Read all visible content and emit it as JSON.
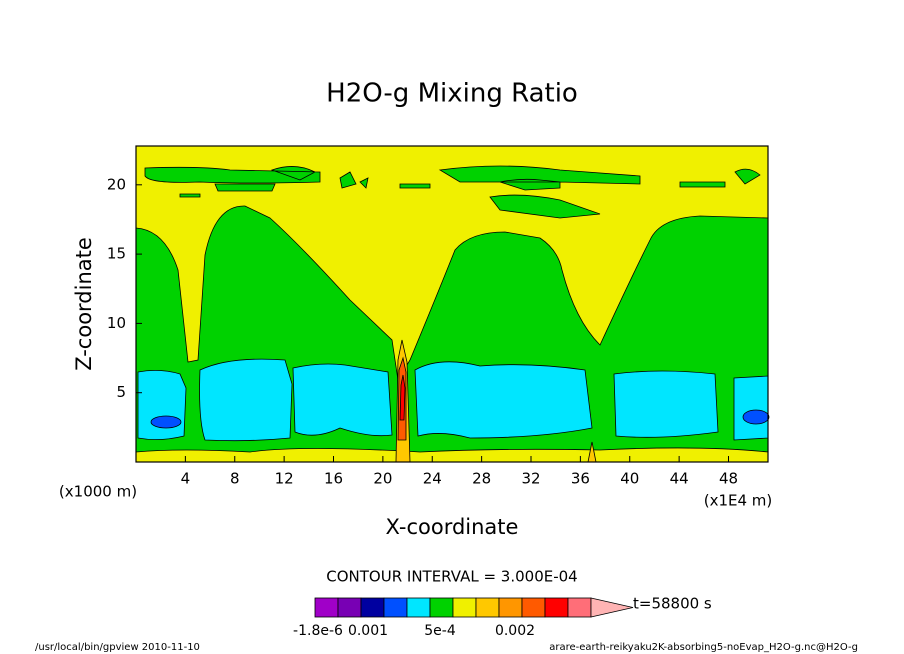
{
  "chart_data": {
    "type": "contour",
    "title": "H2O-g Mixing Ratio",
    "xlabel": "X-coordinate",
    "ylabel": "Z-coordinate",
    "x_unit": "(x1E4 m)",
    "y_unit": "(x1000 m)",
    "xlim": [
      0,
      51.2
    ],
    "ylim": [
      0,
      22.8
    ],
    "xticks": [
      4,
      8,
      12,
      16,
      20,
      24,
      28,
      32,
      36,
      40,
      44,
      48
    ],
    "yticks": [
      5,
      10,
      15,
      20
    ],
    "contour_interval": "CONTOUR INTERVAL = 3.000E-04",
    "time": "t=58800 s",
    "colorbar_colors": [
      "#a000c8",
      "#7800b4",
      "#0000a0",
      "#0050ff",
      "#00e6ff",
      "#00d200",
      "#f0f000",
      "#ffc800",
      "#ff9600",
      "#ff5a00",
      "#ff0000",
      "#ff6e78",
      "#ffb4b4"
    ],
    "colorbar_labels": [
      "-1.8e-6",
      "0.001",
      "5e-4",
      "0.002"
    ],
    "footer_left": "/usr/local/bin/gpview  2010-11-10",
    "footer_right": "arare-earth-reikyaku2K-absorbing5-noEvap_H2O-g.nc@H2O-g"
  }
}
